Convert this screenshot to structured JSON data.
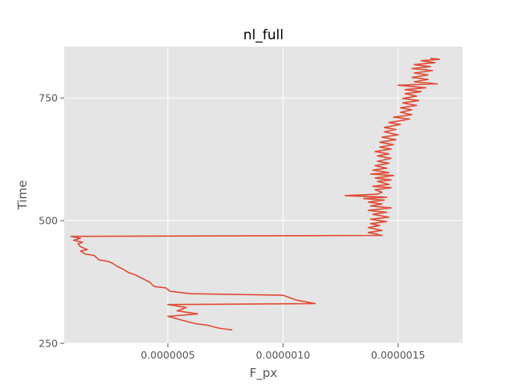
{
  "chart_data": {
    "type": "line",
    "title": "nl_full",
    "xlabel": "F_px",
    "ylabel": "Time",
    "xlim": [
      5e-08,
      1.78e-06
    ],
    "ylim": [
      250,
      855
    ],
    "xticks": [
      {
        "value": 5e-07,
        "label": "0.0000005"
      },
      {
        "value": 1e-06,
        "label": "0.0000010"
      },
      {
        "value": 1.5e-06,
        "label": "0.0000015"
      }
    ],
    "yticks": [
      {
        "value": 250,
        "label": "250"
      },
      {
        "value": 500,
        "label": "500"
      },
      {
        "value": 750,
        "label": "750"
      }
    ],
    "grid": true,
    "colors": {
      "background": "#e5e5e5",
      "grid": "#ffffff",
      "line": "#e24a33"
    },
    "series": [
      {
        "name": "",
        "points": [
          [
            7.8e-07,
            277
          ],
          [
            7.2e-07,
            281
          ],
          [
            6.7e-07,
            287
          ],
          [
            6.2e-07,
            290
          ],
          [
            5.7e-07,
            296
          ],
          [
            5e-07,
            305
          ],
          [
            6.3e-07,
            310
          ],
          [
            5.4e-07,
            316
          ],
          [
            5.8e-07,
            323
          ],
          [
            5e-07,
            329
          ],
          [
            1.14e-06,
            331
          ],
          [
            1.06e-06,
            338
          ],
          [
            1e-06,
            348
          ],
          [
            6e-07,
            351
          ],
          [
            5.1e-07,
            356
          ],
          [
            4.9e-07,
            363
          ],
          [
            4.4e-07,
            366
          ],
          [
            4.2e-07,
            375
          ],
          [
            3.9e-07,
            382
          ],
          [
            3.6e-07,
            389
          ],
          [
            3.3e-07,
            394
          ],
          [
            3.1e-07,
            400
          ],
          [
            2.8e-07,
            407
          ],
          [
            2.6e-07,
            413
          ],
          [
            2.4e-07,
            417
          ],
          [
            2e-07,
            420
          ],
          [
            1.8e-07,
            429
          ],
          [
            1.4e-07,
            432
          ],
          [
            1.2e-07,
            438
          ],
          [
            1.5e-07,
            441
          ],
          [
            1.2e-07,
            447
          ],
          [
            1.1e-07,
            453
          ],
          [
            1.3e-07,
            456
          ],
          [
            9e-08,
            460
          ],
          [
            1.2e-07,
            464
          ],
          [
            8e-08,
            468
          ],
          [
            1.43e-06,
            470
          ],
          [
            1.41e-06,
            472
          ],
          [
            1.37e-06,
            476
          ],
          [
            1.43e-06,
            480
          ],
          [
            1.37e-06,
            486
          ],
          [
            1.42e-06,
            490
          ],
          [
            1.38e-06,
            494
          ],
          [
            1.45e-06,
            498
          ],
          [
            1.38e-06,
            503
          ],
          [
            1.46e-06,
            507
          ],
          [
            1.39e-06,
            513
          ],
          [
            1.45e-06,
            517
          ],
          [
            1.37e-06,
            521
          ],
          [
            1.47e-06,
            526
          ],
          [
            1.38e-06,
            530
          ],
          [
            1.43e-06,
            534
          ],
          [
            1.37e-06,
            538
          ],
          [
            1.44e-06,
            542
          ],
          [
            1.35e-06,
            545
          ],
          [
            1.45e-06,
            548
          ],
          [
            1.27e-06,
            551
          ],
          [
            1.41e-06,
            554
          ],
          [
            1.43e-06,
            558
          ],
          [
            1.4e-06,
            563
          ],
          [
            1.47e-06,
            567
          ],
          [
            1.39e-06,
            570
          ],
          [
            1.46e-06,
            574
          ],
          [
            1.41e-06,
            580
          ],
          [
            1.47e-06,
            583
          ],
          [
            1.4e-06,
            587
          ],
          [
            1.48e-06,
            592
          ],
          [
            1.38e-06,
            595
          ],
          [
            1.46e-06,
            598
          ],
          [
            1.39e-06,
            603
          ],
          [
            1.45e-06,
            607
          ],
          [
            1.4e-06,
            612
          ],
          [
            1.46e-06,
            617
          ],
          [
            1.41e-06,
            621
          ],
          [
            1.47e-06,
            627
          ],
          [
            1.41e-06,
            632
          ],
          [
            1.46e-06,
            636
          ],
          [
            1.4e-06,
            641
          ],
          [
            1.47e-06,
            646
          ],
          [
            1.42e-06,
            650
          ],
          [
            1.48e-06,
            655
          ],
          [
            1.42e-06,
            660
          ],
          [
            1.49e-06,
            665
          ],
          [
            1.43e-06,
            670
          ],
          [
            1.5e-06,
            675
          ],
          [
            1.44e-06,
            681
          ],
          [
            1.49e-06,
            686
          ],
          [
            1.44e-06,
            690
          ],
          [
            1.51e-06,
            696
          ],
          [
            1.46e-06,
            700
          ],
          [
            1.55e-06,
            707
          ],
          [
            1.48e-06,
            711
          ],
          [
            1.56e-06,
            716
          ],
          [
            1.51e-06,
            721
          ],
          [
            1.56e-06,
            726
          ],
          [
            1.51e-06,
            730
          ],
          [
            1.58e-06,
            735
          ],
          [
            1.52e-06,
            740
          ],
          [
            1.59e-06,
            745
          ],
          [
            1.52e-06,
            749
          ],
          [
            1.58e-06,
            754
          ],
          [
            1.53e-06,
            759
          ],
          [
            1.6e-06,
            763
          ],
          [
            1.53e-06,
            767
          ],
          [
            1.62e-06,
            771
          ],
          [
            1.5e-06,
            776
          ],
          [
            1.67e-06,
            779
          ],
          [
            1.57e-06,
            783
          ],
          [
            1.63e-06,
            788
          ],
          [
            1.56e-06,
            792
          ],
          [
            1.63e-06,
            797
          ],
          [
            1.57e-06,
            801
          ],
          [
            1.65e-06,
            806
          ],
          [
            1.56e-06,
            810
          ],
          [
            1.64e-06,
            814
          ],
          [
            1.57e-06,
            818
          ],
          [
            1.66e-06,
            822
          ],
          [
            1.6e-06,
            826
          ],
          [
            1.68e-06,
            829
          ],
          [
            1.64e-06,
            831
          ]
        ]
      }
    ]
  }
}
